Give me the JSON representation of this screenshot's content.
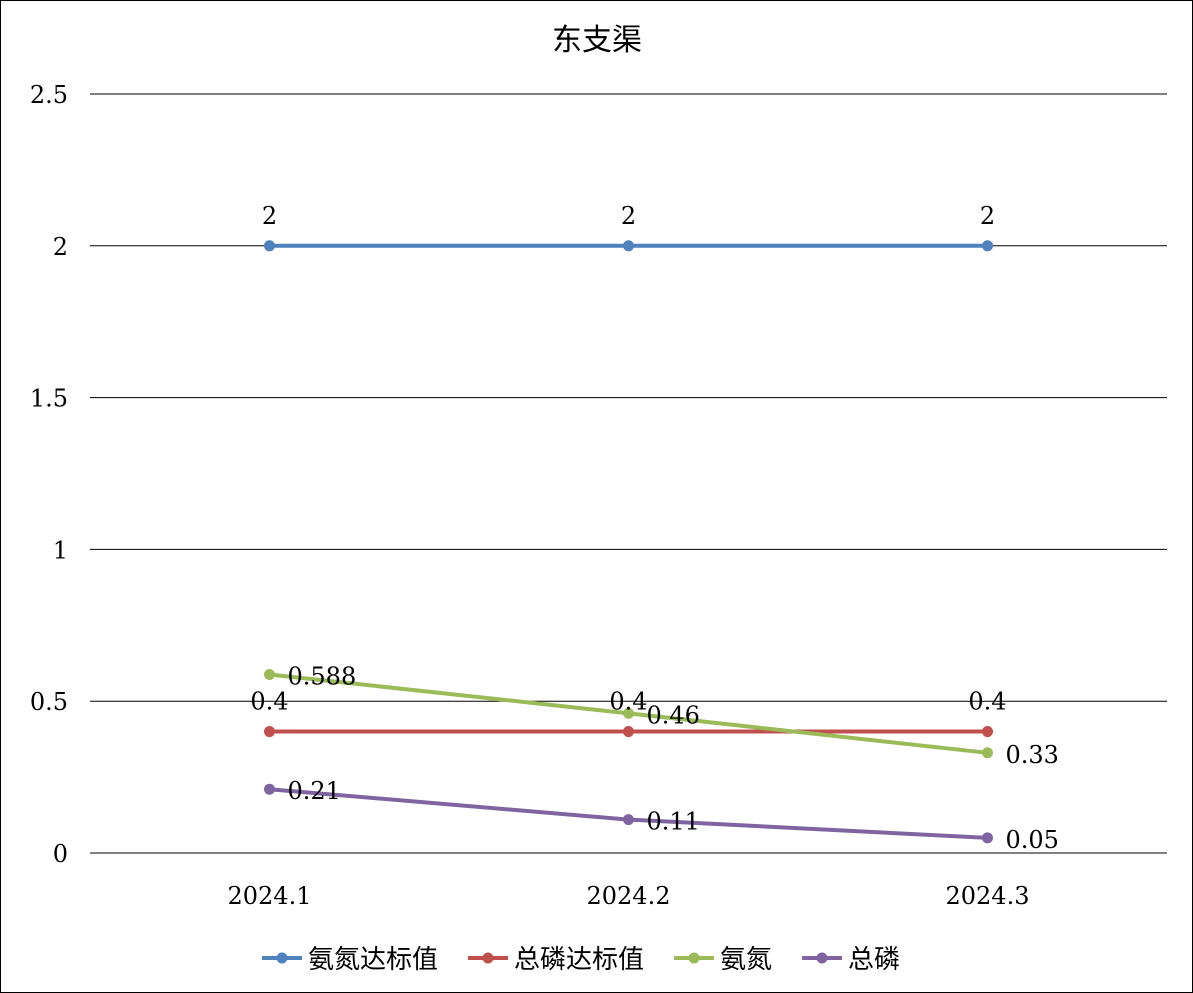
{
  "chart_data": {
    "type": "line",
    "title": "东支渠",
    "categories": [
      "2024.1",
      "2024.2",
      "2024.3"
    ],
    "ylim": [
      0,
      2.5
    ],
    "yticks": [
      0,
      0.5,
      1,
      1.5,
      2,
      2.5
    ],
    "ytick_labels": [
      "0",
      "0.5",
      "1",
      "1.5",
      "2",
      "2.5"
    ],
    "grid": true,
    "legend_position": "bottom",
    "series": [
      {
        "name": "氨氮达标值",
        "color": "#4F81BD",
        "values": [
          2,
          2,
          2
        ],
        "labels": [
          "2",
          "2",
          "2"
        ],
        "label_pos": "above"
      },
      {
        "name": "总磷达标值",
        "color": "#C0504D",
        "values": [
          0.4,
          0.4,
          0.4
        ],
        "labels": [
          "0.4",
          "0.4",
          "0.4"
        ],
        "label_pos": "above"
      },
      {
        "name": "氨氮",
        "color": "#9BBB59",
        "values": [
          0.588,
          0.46,
          0.33
        ],
        "labels": [
          "0.588",
          "0.46",
          "0.33"
        ],
        "label_pos": "right"
      },
      {
        "name": "总磷",
        "color": "#8064A2",
        "values": [
          0.21,
          0.11,
          0.05
        ],
        "labels": [
          "0.21",
          "0.11",
          "0.05"
        ],
        "label_pos": "right"
      }
    ]
  }
}
